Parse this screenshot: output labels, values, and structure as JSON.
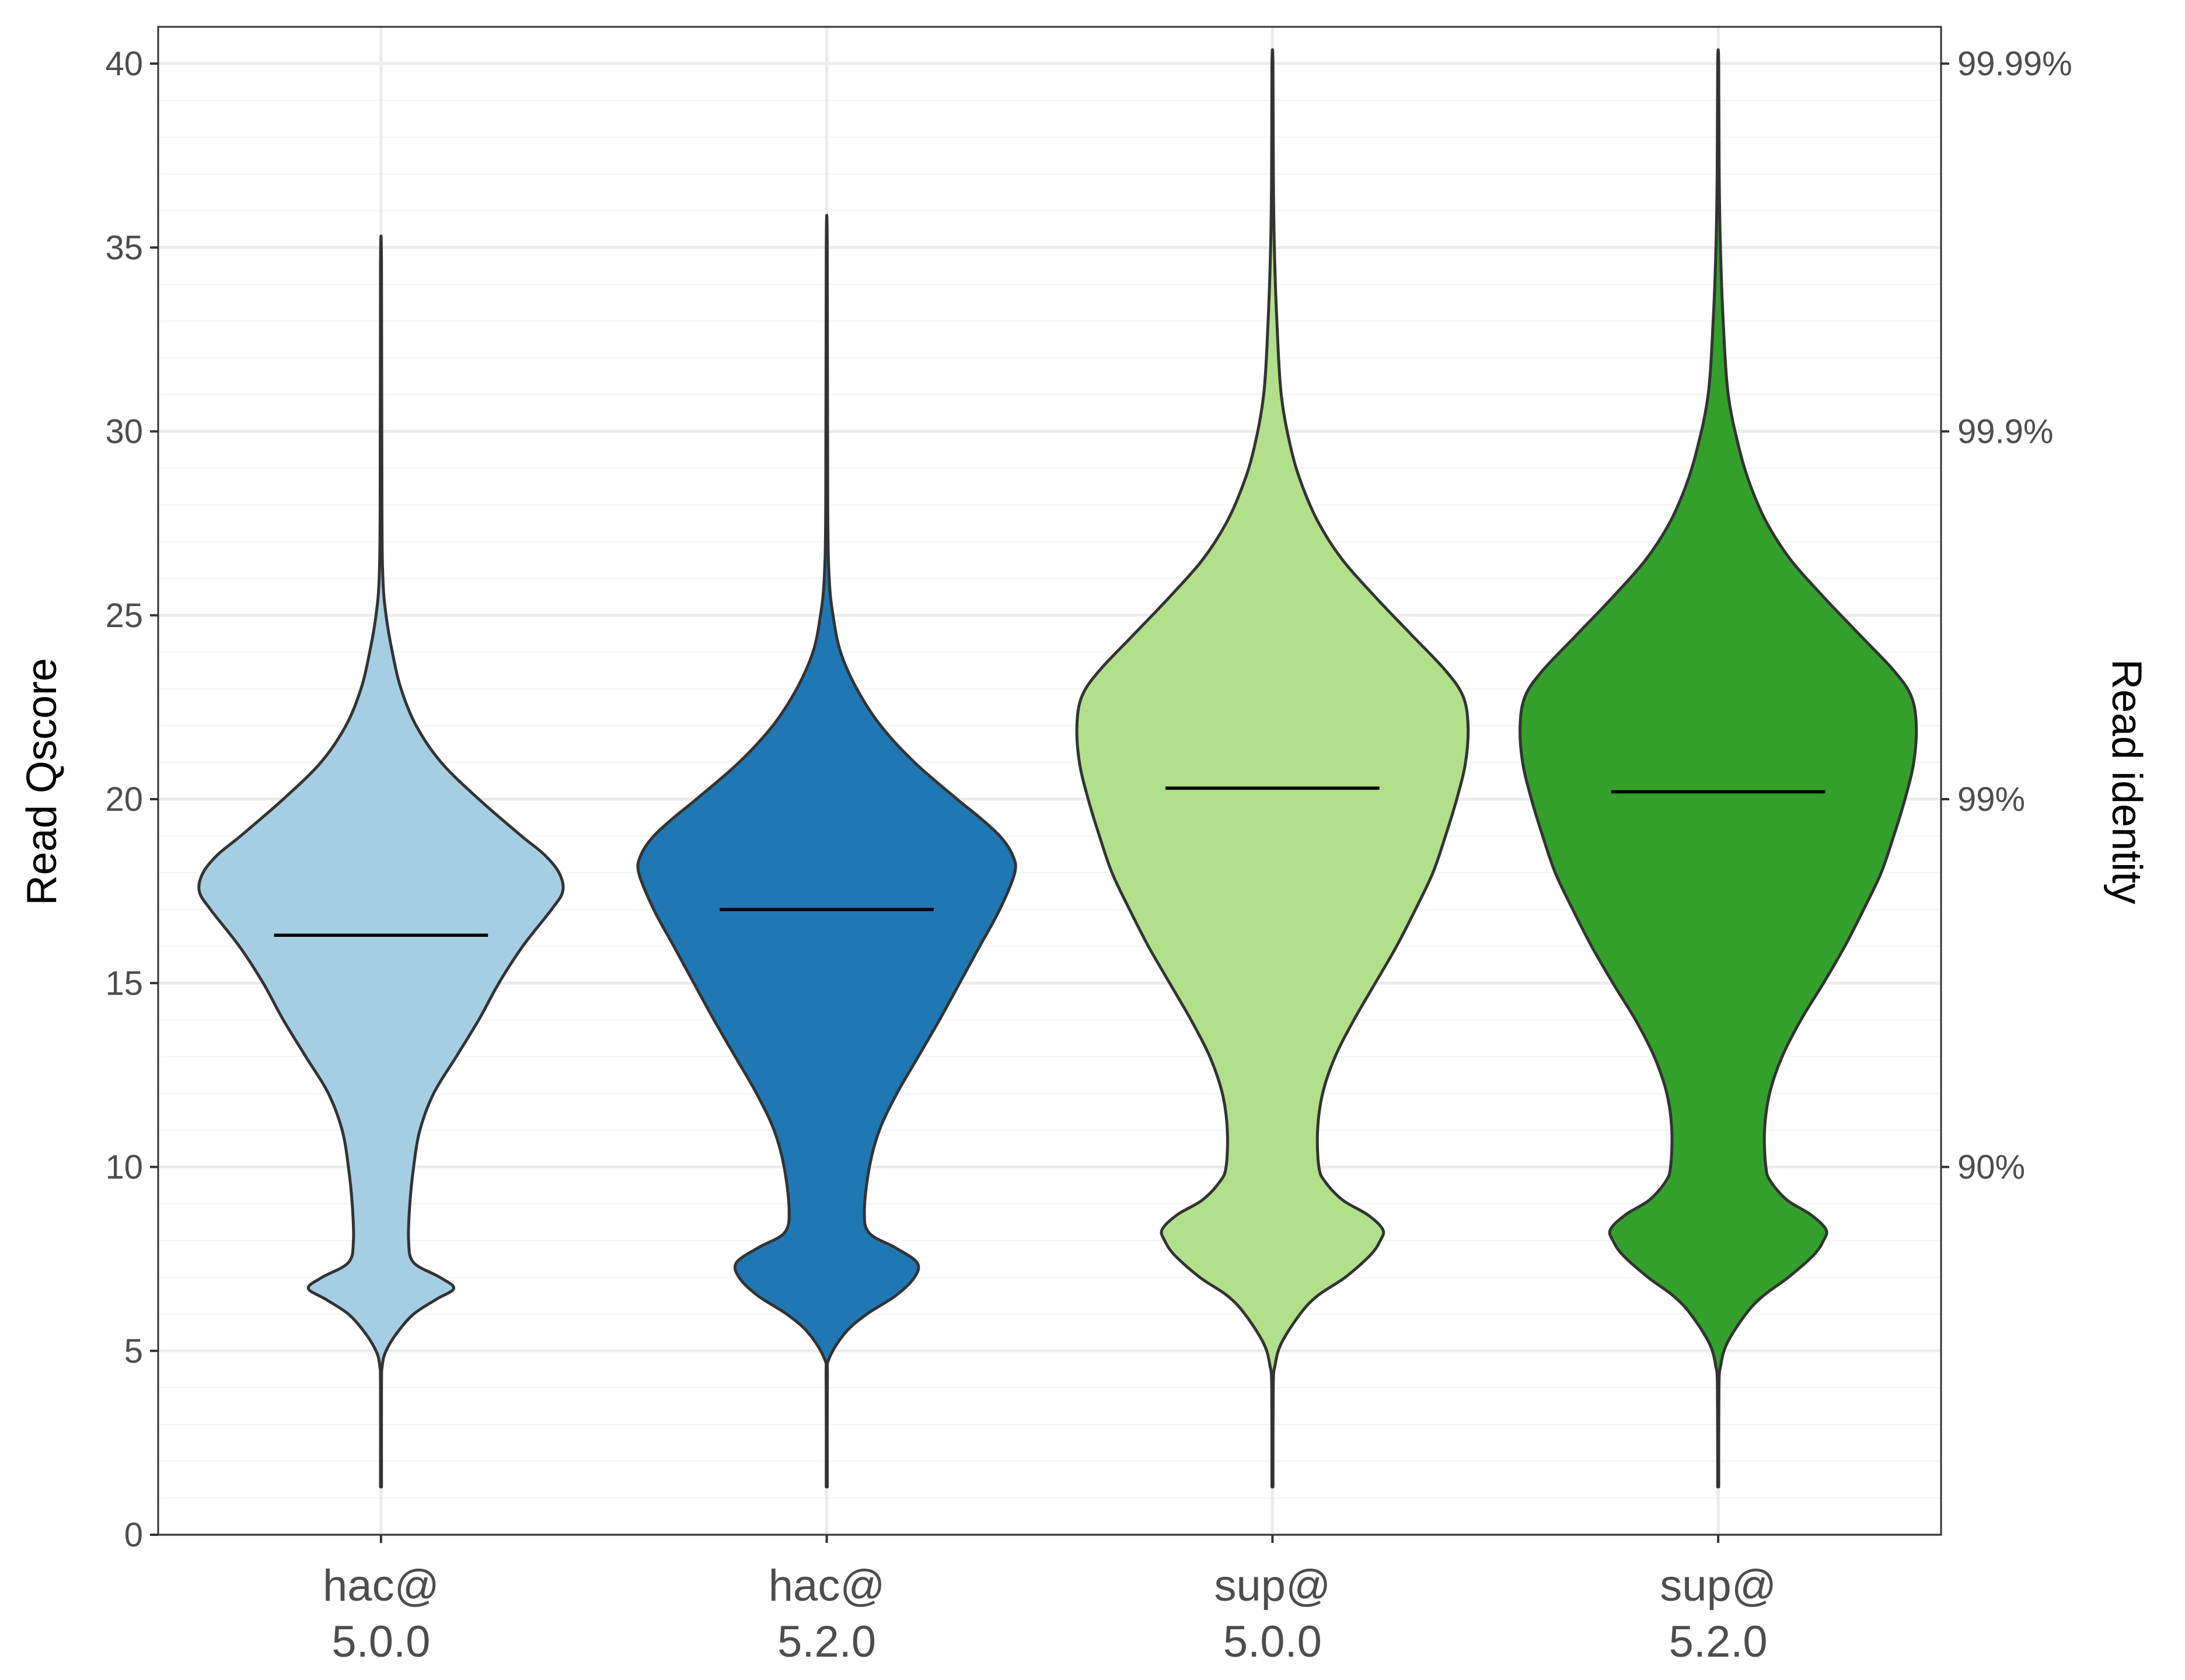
{
  "chart_data": {
    "type": "violin",
    "xlabel": "",
    "ylabel": "Read Qscore",
    "y2label": "Read identity",
    "ylim": [
      0,
      41
    ],
    "yticks": [
      0,
      5,
      10,
      15,
      20,
      25,
      30,
      35,
      40
    ],
    "y_minor_step": 1,
    "y2_ticks": [
      {
        "q": 10,
        "label": "90%"
      },
      {
        "q": 20,
        "label": "99%"
      },
      {
        "q": 30,
        "label": "99.9%"
      },
      {
        "q": 40,
        "label": "99.99%"
      }
    ],
    "grid": true,
    "legend": "none",
    "categories": [
      {
        "line1": "hac@",
        "line2": "5.0.0",
        "color": "#a6cee3"
      },
      {
        "line1": "hac@",
        "line2": "5.2.0",
        "color": "#1f78b4"
      },
      {
        "line1": "sup@",
        "line2": "5.0.0",
        "color": "#b2df8a"
      },
      {
        "line1": "sup@",
        "line2": "5.2.0",
        "color": "#33a02c"
      }
    ],
    "series": [
      {
        "median": 16.3,
        "profile": [
          [
            1.3,
            0.004
          ],
          [
            4.0,
            0.004
          ],
          [
            4.6,
            0.01
          ],
          [
            5.0,
            0.04
          ],
          [
            5.5,
            0.13
          ],
          [
            6.0,
            0.26
          ],
          [
            6.4,
            0.44
          ],
          [
            6.7,
            0.58
          ],
          [
            7.0,
            0.47
          ],
          [
            7.4,
            0.26
          ],
          [
            8.0,
            0.22
          ],
          [
            9.0,
            0.23
          ],
          [
            10.0,
            0.26
          ],
          [
            11.0,
            0.31
          ],
          [
            12.0,
            0.42
          ],
          [
            13.0,
            0.6
          ],
          [
            14.0,
            0.78
          ],
          [
            15.0,
            0.94
          ],
          [
            16.0,
            1.13
          ],
          [
            17.0,
            1.36
          ],
          [
            17.5,
            1.45
          ],
          [
            18.0,
            1.42
          ],
          [
            18.5,
            1.3
          ],
          [
            19.0,
            1.12
          ],
          [
            20.0,
            0.78
          ],
          [
            21.0,
            0.48
          ],
          [
            22.0,
            0.28
          ],
          [
            23.0,
            0.16
          ],
          [
            24.0,
            0.09
          ],
          [
            25.0,
            0.04
          ],
          [
            26.0,
            0.015
          ],
          [
            28.0,
            0.007
          ],
          [
            34.5,
            0.004
          ]
        ]
      },
      {
        "median": 17.0,
        "profile": [
          [
            1.3,
            0.004
          ],
          [
            4.2,
            0.005
          ],
          [
            4.8,
            0.02
          ],
          [
            5.5,
            0.15
          ],
          [
            6.0,
            0.32
          ],
          [
            6.5,
            0.55
          ],
          [
            7.0,
            0.7
          ],
          [
            7.4,
            0.72
          ],
          [
            7.8,
            0.55
          ],
          [
            8.2,
            0.34
          ],
          [
            8.8,
            0.3
          ],
          [
            10.0,
            0.34
          ],
          [
            11.0,
            0.42
          ],
          [
            12.0,
            0.56
          ],
          [
            13.0,
            0.73
          ],
          [
            14.0,
            0.9
          ],
          [
            15.0,
            1.06
          ],
          [
            16.0,
            1.22
          ],
          [
            17.0,
            1.38
          ],
          [
            18.0,
            1.5
          ],
          [
            18.5,
            1.48
          ],
          [
            19.0,
            1.38
          ],
          [
            19.5,
            1.22
          ],
          [
            20.0,
            1.04
          ],
          [
            21.0,
            0.7
          ],
          [
            22.0,
            0.43
          ],
          [
            23.0,
            0.24
          ],
          [
            24.0,
            0.11
          ],
          [
            25.0,
            0.05
          ],
          [
            26.0,
            0.02
          ],
          [
            28.0,
            0.008
          ],
          [
            35.0,
            0.004
          ]
        ]
      },
      {
        "median": 20.3,
        "profile": [
          [
            1.3,
            0.004
          ],
          [
            4.0,
            0.006
          ],
          [
            4.6,
            0.02
          ],
          [
            5.2,
            0.07
          ],
          [
            6.0,
            0.22
          ],
          [
            6.5,
            0.36
          ],
          [
            7.0,
            0.58
          ],
          [
            7.6,
            0.78
          ],
          [
            8.0,
            0.86
          ],
          [
            8.3,
            0.88
          ],
          [
            8.7,
            0.76
          ],
          [
            9.1,
            0.56
          ],
          [
            9.6,
            0.42
          ],
          [
            10.0,
            0.37
          ],
          [
            11.0,
            0.36
          ],
          [
            12.0,
            0.4
          ],
          [
            13.0,
            0.5
          ],
          [
            14.0,
            0.65
          ],
          [
            15.0,
            0.82
          ],
          [
            16.0,
            0.99
          ],
          [
            17.0,
            1.14
          ],
          [
            18.0,
            1.28
          ],
          [
            19.0,
            1.38
          ],
          [
            20.0,
            1.47
          ],
          [
            21.0,
            1.54
          ],
          [
            22.0,
            1.56
          ],
          [
            22.8,
            1.52
          ],
          [
            23.5,
            1.38
          ],
          [
            24.5,
            1.1
          ],
          [
            25.5,
            0.82
          ],
          [
            26.5,
            0.56
          ],
          [
            27.5,
            0.37
          ],
          [
            28.5,
            0.24
          ],
          [
            29.5,
            0.15
          ],
          [
            31.0,
            0.07
          ],
          [
            33.0,
            0.035
          ],
          [
            35.0,
            0.015
          ],
          [
            37.0,
            0.007
          ],
          [
            40.0,
            0.004
          ]
        ]
      },
      {
        "median": 20.2,
        "profile": [
          [
            1.3,
            0.004
          ],
          [
            4.0,
            0.006
          ],
          [
            4.6,
            0.02
          ],
          [
            5.2,
            0.07
          ],
          [
            6.0,
            0.22
          ],
          [
            6.5,
            0.36
          ],
          [
            7.0,
            0.56
          ],
          [
            7.6,
            0.76
          ],
          [
            8.0,
            0.84
          ],
          [
            8.3,
            0.86
          ],
          [
            8.7,
            0.74
          ],
          [
            9.1,
            0.55
          ],
          [
            9.6,
            0.42
          ],
          [
            10.0,
            0.38
          ],
          [
            11.0,
            0.37
          ],
          [
            12.0,
            0.41
          ],
          [
            13.0,
            0.51
          ],
          [
            14.0,
            0.66
          ],
          [
            15.0,
            0.84
          ],
          [
            16.0,
            1.01
          ],
          [
            17.0,
            1.16
          ],
          [
            18.0,
            1.3
          ],
          [
            19.0,
            1.4
          ],
          [
            20.0,
            1.49
          ],
          [
            21.0,
            1.56
          ],
          [
            22.0,
            1.58
          ],
          [
            22.8,
            1.54
          ],
          [
            23.5,
            1.4
          ],
          [
            24.5,
            1.12
          ],
          [
            25.5,
            0.84
          ],
          [
            26.5,
            0.58
          ],
          [
            27.5,
            0.39
          ],
          [
            28.5,
            0.26
          ],
          [
            29.5,
            0.17
          ],
          [
            31.0,
            0.08
          ],
          [
            33.0,
            0.04
          ],
          [
            35.0,
            0.018
          ],
          [
            37.0,
            0.008
          ],
          [
            40.0,
            0.004
          ]
        ]
      }
    ]
  }
}
